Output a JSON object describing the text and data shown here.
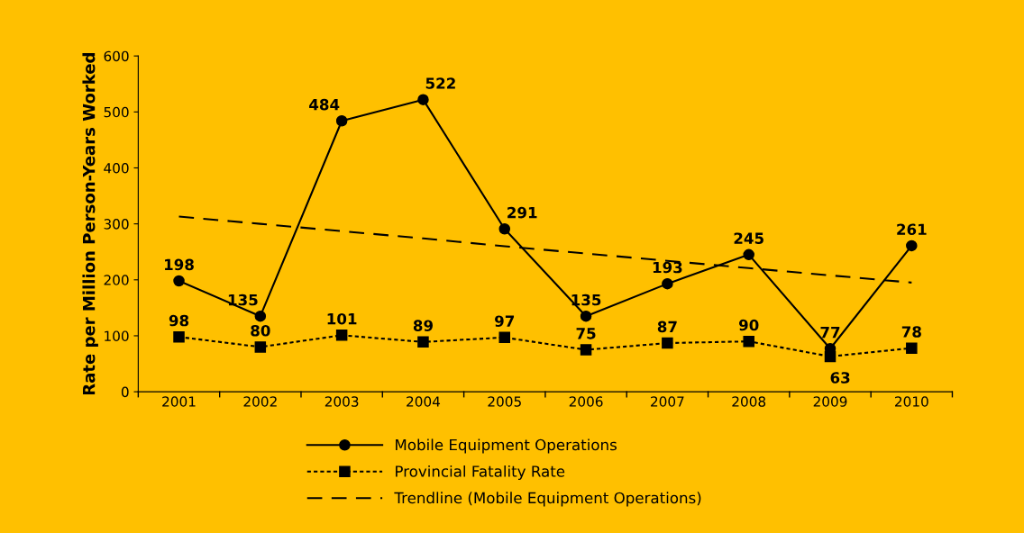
{
  "chart_data": {
    "type": "line",
    "ylabel": "Rate per Million Person-Years Worked",
    "categories": [
      "2001",
      "2002",
      "2003",
      "2004",
      "2005",
      "2006",
      "2007",
      "2008",
      "2009",
      "2010"
    ],
    "series": [
      {
        "name": "Mobile Equipment Operations",
        "color": "#000000",
        "marker": "circle",
        "line_style": "solid",
        "values": [
          198,
          135,
          484,
          522,
          291,
          135,
          193,
          245,
          77,
          261
        ],
        "value_labels": [
          "198",
          "135",
          "484",
          "522",
          "291",
          "135",
          "193",
          "245",
          "77",
          "261"
        ]
      },
      {
        "name": "Provincial Fatality Rate",
        "color": "#000000",
        "marker": "square",
        "line_style": "dotted",
        "values": [
          98,
          80,
          101,
          89,
          97,
          75,
          87,
          90,
          63,
          78
        ],
        "value_labels": [
          "98",
          "80",
          "101",
          "89",
          "97",
          "75",
          "87",
          "90",
          "63",
          "78"
        ]
      },
      {
        "name": "Trendline (Mobile Equipment Operations)",
        "color": "#000000",
        "marker": "none",
        "line_style": "dashed",
        "values": [
          313,
          300,
          287,
          274,
          260,
          247,
          234,
          221,
          208,
          195
        ]
      }
    ],
    "ylim": [
      0,
      600
    ],
    "yticks": [
      0,
      100,
      200,
      300,
      400,
      500,
      600
    ],
    "grid": false,
    "legend": "bottom"
  }
}
